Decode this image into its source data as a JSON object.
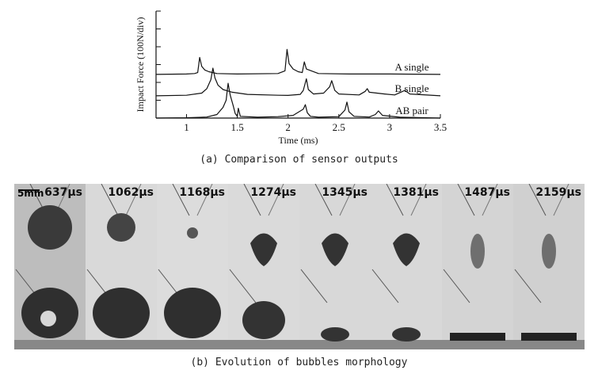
{
  "chart_data": {
    "type": "line",
    "ylabel": "Impact Force (100N/div)",
    "xlabel": "Time (ms)",
    "xlim": [
      0.7,
      3.5
    ],
    "xticks": [
      1,
      1.5,
      2,
      2.5,
      3,
      3.5
    ],
    "ydivisions": 6,
    "caption": "(a) Comparison of sensor outputs",
    "series": [
      {
        "name": "A single",
        "baseline_div": 2.45,
        "points": [
          [
            0.7,
            0
          ],
          [
            1.0,
            0.02
          ],
          [
            1.08,
            0.05
          ],
          [
            1.11,
            0.1
          ],
          [
            1.13,
            0.95
          ],
          [
            1.15,
            0.45
          ],
          [
            1.18,
            0.25
          ],
          [
            1.22,
            0.15
          ],
          [
            1.3,
            0.05
          ],
          [
            1.5,
            0.02
          ],
          [
            1.9,
            0.05
          ],
          [
            1.97,
            0.2
          ],
          [
            1.99,
            1.4
          ],
          [
            2.01,
            0.6
          ],
          [
            2.05,
            0.3
          ],
          [
            2.1,
            0.15
          ],
          [
            2.14,
            0.1
          ],
          [
            2.16,
            0.7
          ],
          [
            2.18,
            0.3
          ],
          [
            2.3,
            0.05
          ],
          [
            2.6,
            0.02
          ],
          [
            3.0,
            0.02
          ],
          [
            3.5,
            0.0
          ]
        ]
      },
      {
        "name": "B single",
        "baseline_div": 1.25,
        "points": [
          [
            0.7,
            0
          ],
          [
            1.0,
            0.03
          ],
          [
            1.15,
            0.15
          ],
          [
            1.2,
            0.4
          ],
          [
            1.24,
            0.9
          ],
          [
            1.26,
            1.55
          ],
          [
            1.28,
            1.0
          ],
          [
            1.31,
            0.6
          ],
          [
            1.36,
            0.35
          ],
          [
            1.45,
            0.2
          ],
          [
            1.6,
            0.08
          ],
          [
            1.9,
            0.03
          ],
          [
            2.0,
            0.02
          ],
          [
            2.12,
            0.08
          ],
          [
            2.15,
            0.3
          ],
          [
            2.18,
            0.95
          ],
          [
            2.2,
            0.35
          ],
          [
            2.25,
            0.1
          ],
          [
            2.35,
            0.15
          ],
          [
            2.41,
            0.5
          ],
          [
            2.43,
            0.85
          ],
          [
            2.46,
            0.3
          ],
          [
            2.5,
            0.1
          ],
          [
            2.7,
            0.05
          ],
          [
            2.76,
            0.25
          ],
          [
            2.78,
            0.4
          ],
          [
            2.8,
            0.2
          ],
          [
            2.95,
            0.1
          ],
          [
            3.05,
            0.05
          ],
          [
            3.15,
            0.3
          ],
          [
            3.2,
            0.1
          ],
          [
            3.5,
            0.0
          ]
        ]
      },
      {
        "name": "AB pair",
        "baseline_div": 0.0,
        "points": [
          [
            0.7,
            0
          ],
          [
            1.0,
            0.02
          ],
          [
            1.2,
            0.06
          ],
          [
            1.3,
            0.2
          ],
          [
            1.36,
            0.6
          ],
          [
            1.39,
            1.0
          ],
          [
            1.41,
            1.95
          ],
          [
            1.43,
            1.3
          ],
          [
            1.46,
            0.7
          ],
          [
            1.48,
            0.25
          ],
          [
            1.5,
            0.1
          ],
          [
            1.51,
            0.55
          ],
          [
            1.53,
            0.1
          ],
          [
            1.7,
            0.05
          ],
          [
            1.9,
            0.08
          ],
          [
            2.05,
            0.15
          ],
          [
            2.15,
            0.5
          ],
          [
            2.17,
            0.75
          ],
          [
            2.19,
            0.3
          ],
          [
            2.22,
            0.1
          ],
          [
            2.3,
            0.05
          ],
          [
            2.5,
            0.08
          ],
          [
            2.56,
            0.45
          ],
          [
            2.58,
            0.9
          ],
          [
            2.6,
            0.35
          ],
          [
            2.65,
            0.1
          ],
          [
            2.8,
            0.06
          ],
          [
            2.86,
            0.2
          ],
          [
            2.89,
            0.4
          ],
          [
            2.93,
            0.15
          ],
          [
            3.1,
            0.05
          ],
          [
            3.5,
            0.0
          ]
        ]
      }
    ]
  },
  "captions": {
    "a": "(a) Comparison of sensor outputs",
    "b": "(b) Evolution of bubbles morphology"
  },
  "photo_strip": {
    "scale_bar": "5mm",
    "frames": [
      {
        "time": "637μs",
        "tone": "#bdbdbd",
        "top_bubble": "medium",
        "bottom_bubble": "large"
      },
      {
        "time": "1062μs",
        "tone": "#d9d9d9",
        "top_bubble": "small",
        "bottom_bubble": "large"
      },
      {
        "time": "1168μs",
        "tone": "#dcdcdc",
        "top_bubble": "tiny",
        "bottom_bubble": "large"
      },
      {
        "time": "1274μs",
        "tone": "#dadada",
        "top_bubble": "drop",
        "bottom_bubble": "medium"
      },
      {
        "time": "1345μs",
        "tone": "#d8d8d8",
        "top_bubble": "drop",
        "bottom_bubble": "flat"
      },
      {
        "time": "1381μs",
        "tone": "#d8d8d8",
        "top_bubble": "drop",
        "bottom_bubble": "flat"
      },
      {
        "time": "1487μs",
        "tone": "#d4d4d4",
        "top_bubble": "fragment",
        "bottom_bubble": "layer"
      },
      {
        "time": "2159μs",
        "tone": "#d0d0d0",
        "top_bubble": "fragment",
        "bottom_bubble": "layer"
      }
    ]
  }
}
